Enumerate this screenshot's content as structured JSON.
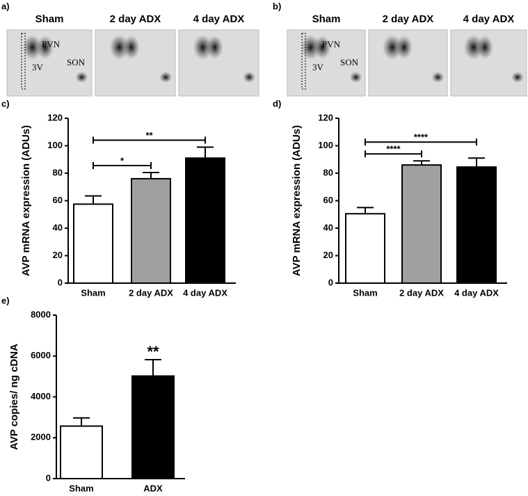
{
  "image_panels": [
    {
      "label": "a)",
      "columns": [
        "Sham",
        "2 day ADX",
        "4 day ADX"
      ],
      "annotations": [
        "PVN",
        "3V",
        "SON"
      ]
    },
    {
      "label": "b)",
      "columns": [
        "Sham",
        "2 day ADX",
        "4 day ADX"
      ],
      "annotations": [
        "PVN",
        "3V",
        "SON"
      ]
    }
  ],
  "chart_data": [
    {
      "type": "bar",
      "label": "c)",
      "y_label": "AVP mRNA expression (ADUs)",
      "categories": [
        "Sham",
        "2 day ADX",
        "4 day ADX"
      ],
      "values": [
        57.5,
        76,
        91
      ],
      "errors": [
        6,
        4.5,
        8
      ],
      "colors": [
        "#ffffff",
        "#a0a0a0",
        "#000000"
      ],
      "ylim": [
        0,
        120
      ],
      "yticks": [
        0,
        20,
        40,
        60,
        80,
        100,
        120
      ],
      "significance": [
        {
          "from": 0,
          "to": 1,
          "label": "*"
        },
        {
          "from": 0,
          "to": 2,
          "label": "**"
        }
      ]
    },
    {
      "type": "bar",
      "label": "d)",
      "y_label": "AVP mRNA expression (ADUs)",
      "categories": [
        "Sham",
        "2 day ADX",
        "4 day ADX"
      ],
      "values": [
        50.5,
        86,
        84.5
      ],
      "errors": [
        4.5,
        3,
        6.5
      ],
      "colors": [
        "#ffffff",
        "#a0a0a0",
        "#000000"
      ],
      "ylim": [
        0,
        120
      ],
      "yticks": [
        0,
        20,
        40,
        60,
        80,
        100,
        120
      ],
      "significance": [
        {
          "from": 0,
          "to": 1,
          "label": "****"
        },
        {
          "from": 0,
          "to": 2,
          "label": "****"
        }
      ]
    },
    {
      "type": "bar",
      "label": "e)",
      "y_label": "AVP copies/ ng cDNA",
      "categories": [
        "Sham",
        "ADX"
      ],
      "values": [
        2570,
        5020
      ],
      "errors": [
        400,
        800
      ],
      "colors": [
        "#ffffff",
        "#000000"
      ],
      "ylim": [
        0,
        8000
      ],
      "yticks": [
        0,
        2000,
        4000,
        6000,
        8000
      ],
      "significance": [
        {
          "from": 1,
          "to": 1,
          "label": "**"
        }
      ]
    }
  ]
}
